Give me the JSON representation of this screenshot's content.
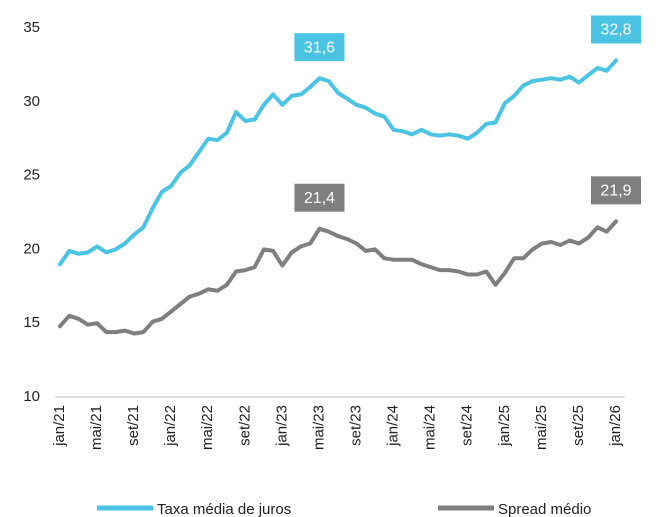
{
  "chart_data": {
    "type": "line",
    "categories": [
      "jan/21",
      null,
      null,
      null,
      "mai/21",
      null,
      null,
      null,
      "set/21",
      null,
      null,
      null,
      "jan/22",
      null,
      null,
      null,
      "mai/22",
      null,
      null,
      null,
      "set/22",
      null,
      null,
      null,
      "jan/23",
      null,
      null,
      null,
      "mai/23",
      null,
      null,
      null,
      "set/23",
      null,
      null,
      null,
      "jan/24",
      null,
      null,
      null,
      "mai/24",
      null,
      null,
      null,
      "set/24",
      null,
      null,
      null,
      "jan/25",
      null,
      null,
      null,
      "mai/25",
      null,
      null,
      null,
      "set/25",
      null,
      null,
      null,
      "jan/26"
    ],
    "series": [
      {
        "name": "Taxa média de juros",
        "color": "#4bc3e2",
        "values": [
          19.0,
          19.9,
          19.7,
          19.8,
          20.2,
          19.8,
          20.0,
          20.4,
          21.0,
          21.5,
          22.8,
          23.9,
          24.3,
          25.2,
          25.7,
          26.6,
          27.5,
          27.4,
          27.9,
          29.3,
          28.7,
          28.8,
          29.8,
          30.5,
          29.8,
          30.4,
          30.5,
          31.0,
          31.6,
          31.4,
          30.6,
          30.2,
          29.8,
          29.6,
          29.2,
          29.0,
          28.1,
          28.0,
          27.8,
          28.1,
          27.8,
          27.7,
          27.8,
          27.7,
          27.5,
          27.9,
          28.5,
          28.6,
          29.9,
          30.4,
          31.1,
          31.4,
          31.5,
          31.6,
          31.5,
          31.7,
          31.3,
          31.8,
          32.3,
          32.1,
          32.8
        ],
        "value_labels": [
          null,
          null,
          null,
          null,
          null,
          null,
          null,
          null,
          null,
          null,
          null,
          null,
          null,
          null,
          null,
          null,
          null,
          null,
          null,
          null,
          null,
          null,
          null,
          null,
          null,
          null,
          null,
          null,
          "31,6",
          null,
          null,
          null,
          null,
          null,
          null,
          null,
          null,
          null,
          null,
          null,
          null,
          null,
          null,
          null,
          null,
          null,
          null,
          null,
          null,
          null,
          null,
          null,
          null,
          null,
          null,
          null,
          null,
          null,
          null,
          null,
          "32,8"
        ]
      },
      {
        "name": "Spread médio",
        "color": "#7f7f7f",
        "values": [
          14.8,
          15.5,
          15.3,
          14.9,
          15.0,
          14.4,
          14.4,
          14.5,
          14.3,
          14.4,
          15.1,
          15.3,
          15.8,
          16.3,
          16.8,
          17.0,
          17.3,
          17.2,
          17.6,
          18.5,
          18.6,
          18.8,
          20.0,
          19.9,
          18.9,
          19.8,
          20.2,
          20.4,
          21.4,
          21.2,
          20.9,
          20.7,
          20.4,
          19.9,
          20.0,
          19.4,
          19.3,
          19.3,
          19.3,
          19.0,
          18.8,
          18.6,
          18.6,
          18.5,
          18.3,
          18.3,
          18.5,
          17.6,
          18.4,
          19.4,
          19.4,
          20.0,
          20.4,
          20.5,
          20.3,
          20.6,
          20.4,
          20.8,
          21.5,
          21.2,
          21.9
        ],
        "value_labels": [
          null,
          null,
          null,
          null,
          null,
          null,
          null,
          null,
          null,
          null,
          null,
          null,
          null,
          null,
          null,
          null,
          null,
          null,
          null,
          null,
          null,
          null,
          null,
          null,
          null,
          null,
          null,
          null,
          "21,4",
          null,
          null,
          null,
          null,
          null,
          null,
          null,
          null,
          null,
          null,
          null,
          null,
          null,
          null,
          null,
          null,
          null,
          null,
          null,
          null,
          null,
          null,
          null,
          null,
          null,
          null,
          null,
          null,
          null,
          null,
          null,
          "21,9"
        ]
      }
    ],
    "ylim": [
      10,
      35
    ],
    "yticks": [
      10,
      15,
      20,
      25,
      30,
      35
    ],
    "grid": false,
    "legend": "bottom"
  }
}
